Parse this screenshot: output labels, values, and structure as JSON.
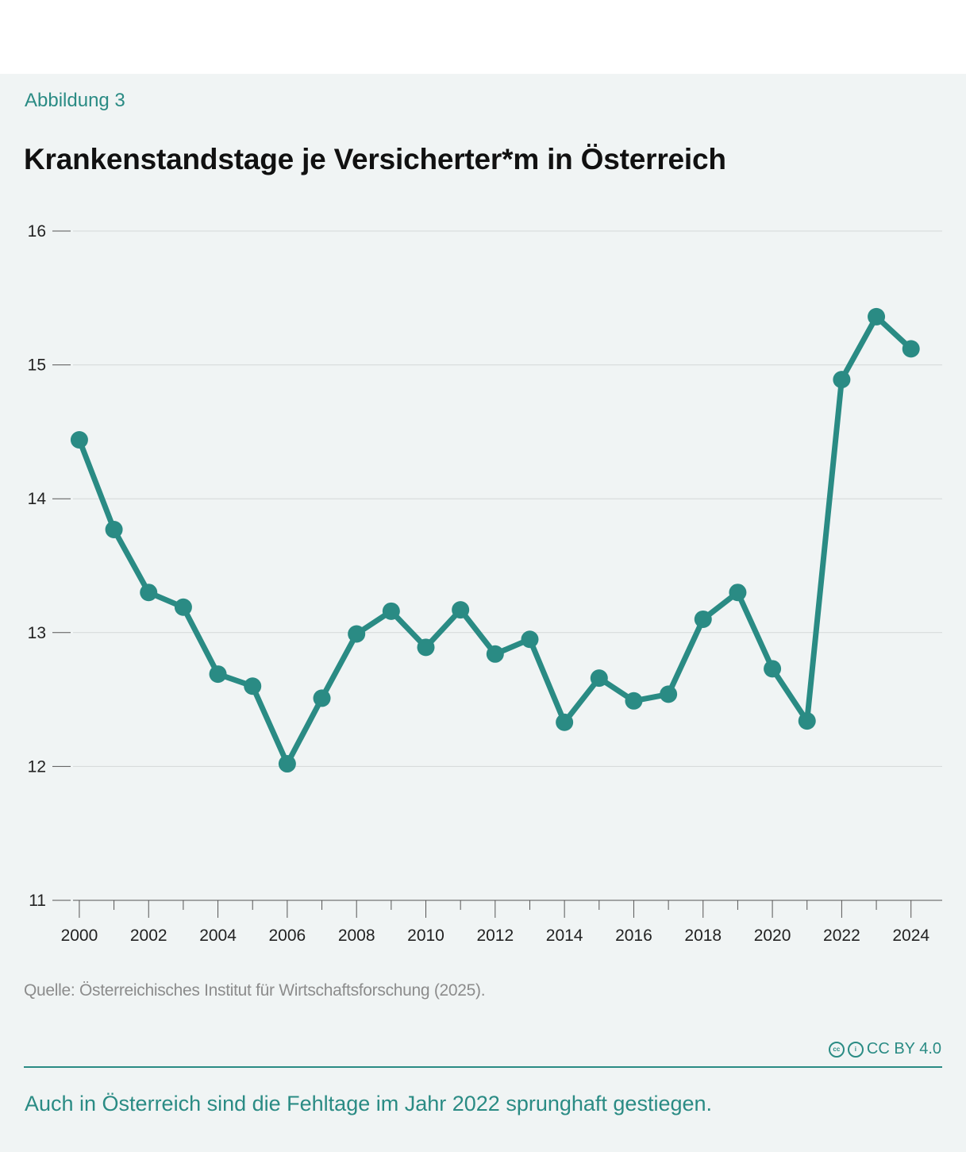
{
  "header": {
    "figure_label": "Abbildung 3",
    "title": "Krankenstandstage je Versicherter*m  in Österreich"
  },
  "footer": {
    "source": "Quelle: Österreichisches Institut für Wirtschaftsforschung (2025).",
    "license": "CC BY 4.0",
    "caption": "Auch in Österreich sind die Fehltage im Jahr 2022 sprunghaft gestiegen."
  },
  "colors": {
    "accent": "#2a8b84",
    "background": "#f0f4f4",
    "grid": "#d4d8d8",
    "text": "#111111",
    "muted": "#8c8c8c"
  },
  "chart_data": {
    "type": "line",
    "title": "Krankenstandstage je Versicherter*m  in Österreich",
    "xlabel": "",
    "ylabel": "",
    "xlim": [
      1999.2,
      2024.9
    ],
    "ylim": [
      11,
      16
    ],
    "y_ticks": [
      11,
      12,
      13,
      14,
      15,
      16
    ],
    "x_tick_labels": [
      2000,
      2002,
      2004,
      2006,
      2008,
      2010,
      2012,
      2014,
      2016,
      2018,
      2020,
      2022,
      2024
    ],
    "x_minor_ticks": [
      2001,
      2003,
      2005,
      2007,
      2009,
      2011,
      2013,
      2015,
      2017,
      2019,
      2021,
      2023
    ],
    "grid": true,
    "legend": "none",
    "x": [
      2000,
      2001,
      2002,
      2003,
      2004,
      2005,
      2006,
      2007,
      2008,
      2009,
      2010,
      2011,
      2012,
      2013,
      2014,
      2015,
      2016,
      2017,
      2018,
      2019,
      2020,
      2021,
      2022,
      2023,
      2024
    ],
    "values": [
      14.44,
      13.77,
      13.3,
      13.19,
      12.69,
      12.6,
      12.02,
      12.51,
      12.99,
      13.16,
      12.89,
      13.17,
      12.84,
      12.95,
      12.33,
      12.66,
      12.49,
      12.54,
      13.1,
      13.3,
      12.73,
      12.34,
      14.89,
      15.36,
      15.12
    ]
  }
}
